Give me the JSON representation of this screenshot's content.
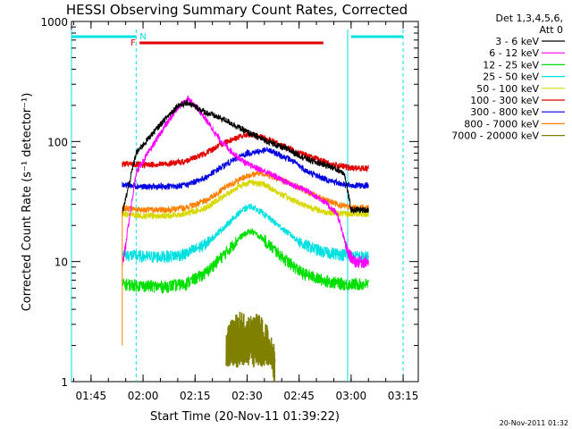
{
  "chart_data": {
    "type": "line",
    "title": "HESSI Observing Summary Count Rates, Corrected",
    "xlabel": "Start Time (20-Nov-11 01:39:22)",
    "ylabel": "Corrected Count Rate (s⁻¹ detector⁻¹)",
    "yscale": "log",
    "ylim": [
      1,
      1000
    ],
    "xlim": [
      "01:39:22",
      "03:19:22"
    ],
    "x_ticks": [
      "01:45",
      "02:00",
      "02:15",
      "02:30",
      "02:45",
      "03:00",
      "03:15"
    ],
    "y_ticks": [
      "1",
      "10",
      "100",
      "1000"
    ],
    "grid": false,
    "legend_position": "right",
    "legend_header": [
      "Det 1,3,4,5,6,",
      "Att 0"
    ],
    "timestamp": "20-Nov-2011 01:32",
    "annotations": {
      "night_label": "N",
      "flare_label": "F",
      "flare_bar": {
        "start": "01:59",
        "end": "02:52",
        "color": "#e00000"
      },
      "night_intervals": [
        [
          "01:39:22",
          "01:58"
        ],
        [
          "03:00",
          "03:15"
        ]
      ],
      "night_color": "#00e0e0",
      "data_gap_lines": [
        "01:39:22",
        "01:58",
        "02:59",
        "03:15"
      ]
    },
    "series": [
      {
        "name": "3 - 6 keV",
        "color": "#000000",
        "x": [
          "01:54",
          "01:58",
          "02:02",
          "02:06",
          "02:10",
          "02:13",
          "02:18",
          "02:24",
          "02:30",
          "02:36",
          "02:42",
          "02:48",
          "02:54",
          "02:58",
          "03:00",
          "03:05"
        ],
        "y": [
          25,
          80,
          110,
          150,
          200,
          210,
          175,
          150,
          120,
          100,
          85,
          70,
          62,
          55,
          27,
          27
        ]
      },
      {
        "name": "6 - 12 keV",
        "color": "#ff00ff",
        "x": [
          "01:54",
          "01:58",
          "02:02",
          "02:06",
          "02:10",
          "02:13",
          "02:17",
          "02:22",
          "02:26",
          "02:30",
          "02:36",
          "02:42",
          "02:48",
          "02:52",
          "02:56",
          "02:59",
          "03:01",
          "03:05"
        ],
        "y": [
          9,
          55,
          85,
          130,
          190,
          230,
          170,
          105,
          80,
          65,
          55,
          45,
          38,
          32,
          25,
          12,
          10,
          10
        ]
      },
      {
        "name": "12 - 25 keV",
        "color": "#00e000",
        "x": [
          "01:54",
          "02:00",
          "02:06",
          "02:12",
          "02:18",
          "02:24",
          "02:28",
          "02:31",
          "02:34",
          "02:40",
          "02:46",
          "02:52",
          "02:58",
          "03:00",
          "03:05"
        ],
        "y": [
          6.5,
          6.3,
          6.2,
          6.5,
          8,
          12,
          16,
          18,
          16,
          11,
          8,
          7,
          6.5,
          6.5,
          6.5
        ]
      },
      {
        "name": "25 - 50 keV",
        "color": "#00e0e0",
        "x": [
          "01:54",
          "02:00",
          "02:06",
          "02:12",
          "02:18",
          "02:24",
          "02:28",
          "02:31",
          "02:34",
          "02:40",
          "02:46",
          "02:52",
          "02:58",
          "03:00",
          "03:05"
        ],
        "y": [
          11.5,
          11,
          11,
          11.5,
          14,
          20,
          26,
          29,
          26,
          19,
          14,
          12,
          11.5,
          11,
          11
        ]
      },
      {
        "name": "50 - 100 keV",
        "color": "#d8d800",
        "x": [
          "01:54",
          "02:00",
          "02:06",
          "02:12",
          "02:18",
          "02:24",
          "02:28",
          "02:31",
          "02:35",
          "02:40",
          "02:46",
          "02:52",
          "02:58",
          "03:00",
          "03:05"
        ],
        "y": [
          25,
          24,
          24,
          25,
          28,
          36,
          43,
          46,
          44,
          36,
          30,
          26,
          25,
          25,
          25
        ]
      },
      {
        "name": "100 - 300 keV",
        "color": "#e00000",
        "x": [
          "01:54",
          "02:00",
          "02:06",
          "02:12",
          "02:18",
          "02:24",
          "02:30",
          "02:36",
          "02:42",
          "02:48",
          "02:54",
          "02:58",
          "03:00",
          "03:05"
        ],
        "y": [
          65,
          64,
          65,
          68,
          80,
          100,
          115,
          105,
          88,
          75,
          65,
          62,
          60,
          60
        ]
      },
      {
        "name": "300 - 800 keV",
        "color": "#0000e0",
        "x": [
          "01:54",
          "02:00",
          "02:06",
          "02:12",
          "02:18",
          "02:24",
          "02:30",
          "02:36",
          "02:42",
          "02:48",
          "02:54",
          "02:58",
          "03:00",
          "03:05"
        ],
        "y": [
          44,
          42,
          42,
          43,
          50,
          65,
          80,
          85,
          72,
          55,
          47,
          44,
          43,
          43
        ]
      },
      {
        "name": "800 - 7000 keV",
        "color": "#ff8000",
        "x": [
          "01:54",
          "02:00",
          "02:06",
          "02:12",
          "02:18",
          "02:24",
          "02:30",
          "02:34",
          "02:40",
          "02:46",
          "02:52",
          "02:58",
          "03:00",
          "03:05"
        ],
        "y": [
          28,
          27,
          27,
          28,
          32,
          42,
          52,
          55,
          48,
          40,
          33,
          29,
          28,
          28
        ]
      },
      {
        "name": "7000 - 20000 keV",
        "color": "#808000",
        "x": [
          "02:24",
          "02:26",
          "02:28",
          "02:30",
          "02:32",
          "02:34",
          "02:36",
          "02:38"
        ],
        "y": [
          2,
          2.6,
          2.9,
          2.6,
          2.9,
          2.6,
          2.2,
          1.4
        ]
      }
    ]
  }
}
